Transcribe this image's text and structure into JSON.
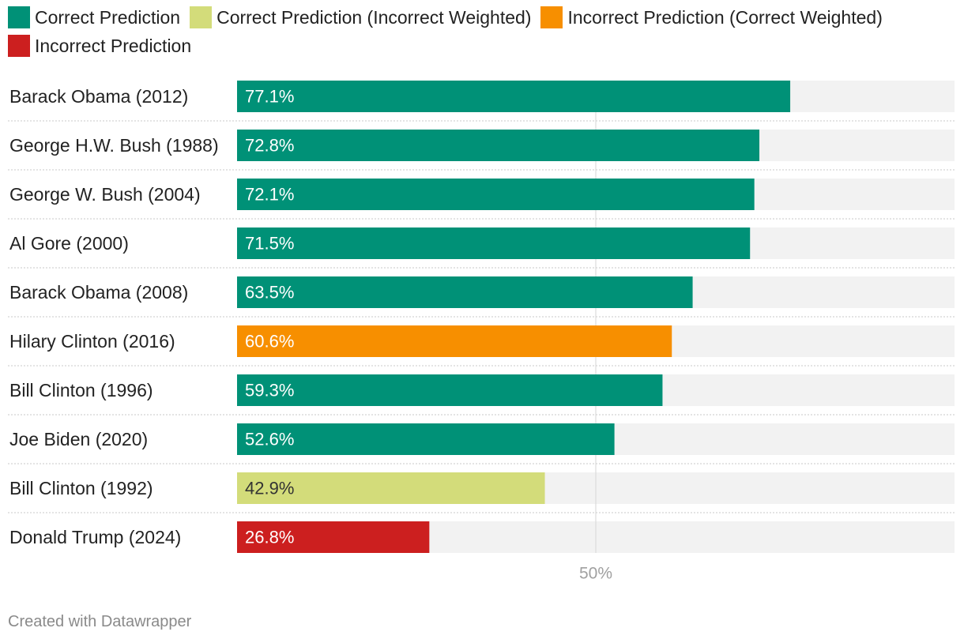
{
  "chart_data": {
    "type": "bar",
    "orientation": "horizontal",
    "title": "",
    "xlabel": "",
    "ylabel": "",
    "xlim": [
      0,
      100
    ],
    "grid": false,
    "legend_position": "top",
    "categories": [
      "Barack Obama (2012)",
      "George H.W. Bush (1988)",
      "George W. Bush (2004)",
      "Al Gore (2000)",
      "Barack Obama (2008)",
      "Hilary Clinton (2016)",
      "Bill Clinton (1996)",
      "Joe Biden (2020)",
      "Bill Clinton (1992)",
      "Donald Trump (2024)"
    ],
    "values": [
      77.1,
      72.8,
      72.1,
      71.5,
      63.5,
      60.6,
      59.3,
      52.6,
      42.9,
      26.8
    ],
    "value_labels": [
      "77.1%",
      "72.8%",
      "72.1%",
      "71.5%",
      "63.5%",
      "60.6%",
      "59.3%",
      "52.6%",
      "42.9%",
      "26.8%"
    ],
    "classes": [
      "Correct Prediction",
      "Correct Prediction",
      "Correct Prediction",
      "Correct Prediction",
      "Correct Prediction",
      "Incorrect Prediction (Correct Weighted)",
      "Correct Prediction",
      "Correct Prediction",
      "Correct Prediction (Incorrect Weighted)",
      "Incorrect Prediction"
    ],
    "legend": [
      {
        "label": "Correct Prediction",
        "color": "#009177",
        "text_color": "#ffffff"
      },
      {
        "label": "Correct Prediction (Incorrect Weighted)",
        "color": "#d3dc7a",
        "text_color": "#333333"
      },
      {
        "label": "Incorrect Prediction (Correct Weighted)",
        "color": "#f78f00",
        "text_color": "#ffffff"
      },
      {
        "label": "Incorrect Prediction",
        "color": "#cc1f1f",
        "text_color": "#ffffff"
      }
    ],
    "reference_line": {
      "value": 50,
      "label": "50%"
    },
    "background_bar_color": "#f2f2f2"
  },
  "footer": {
    "credit": "Created with Datawrapper"
  }
}
